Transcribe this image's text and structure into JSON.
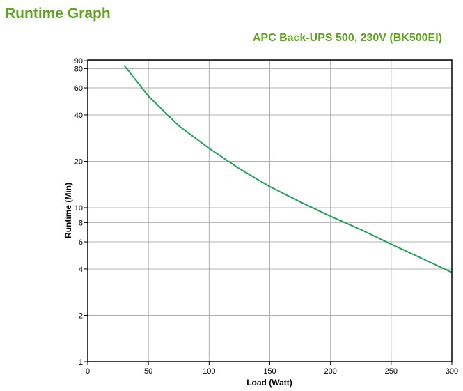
{
  "header": {
    "title": "Runtime Graph",
    "subtitle": "APC Back-UPS 500, 230V (BK500EI)"
  },
  "chart_data": {
    "type": "line",
    "xlabel": "Load (Watt)",
    "ylabel": "Runtime (Min)",
    "xlim": [
      0,
      300
    ],
    "ylim": [
      1,
      90
    ],
    "yscale": "log",
    "grid": true,
    "xticks": [
      0,
      50,
      100,
      150,
      200,
      250,
      300
    ],
    "yticks": [
      1,
      2,
      4,
      6,
      8,
      10,
      20,
      40,
      60,
      80,
      90
    ],
    "line_color": "#1fa35a",
    "series": [
      {
        "x": [
          30,
          50,
          75,
          100,
          125,
          150,
          175,
          200,
          225,
          250,
          275,
          300
        ],
        "y": [
          84,
          53,
          34,
          24.3,
          17.9,
          13.7,
          10.9,
          8.8,
          7.2,
          5.8,
          4.7,
          3.8
        ]
      }
    ]
  }
}
